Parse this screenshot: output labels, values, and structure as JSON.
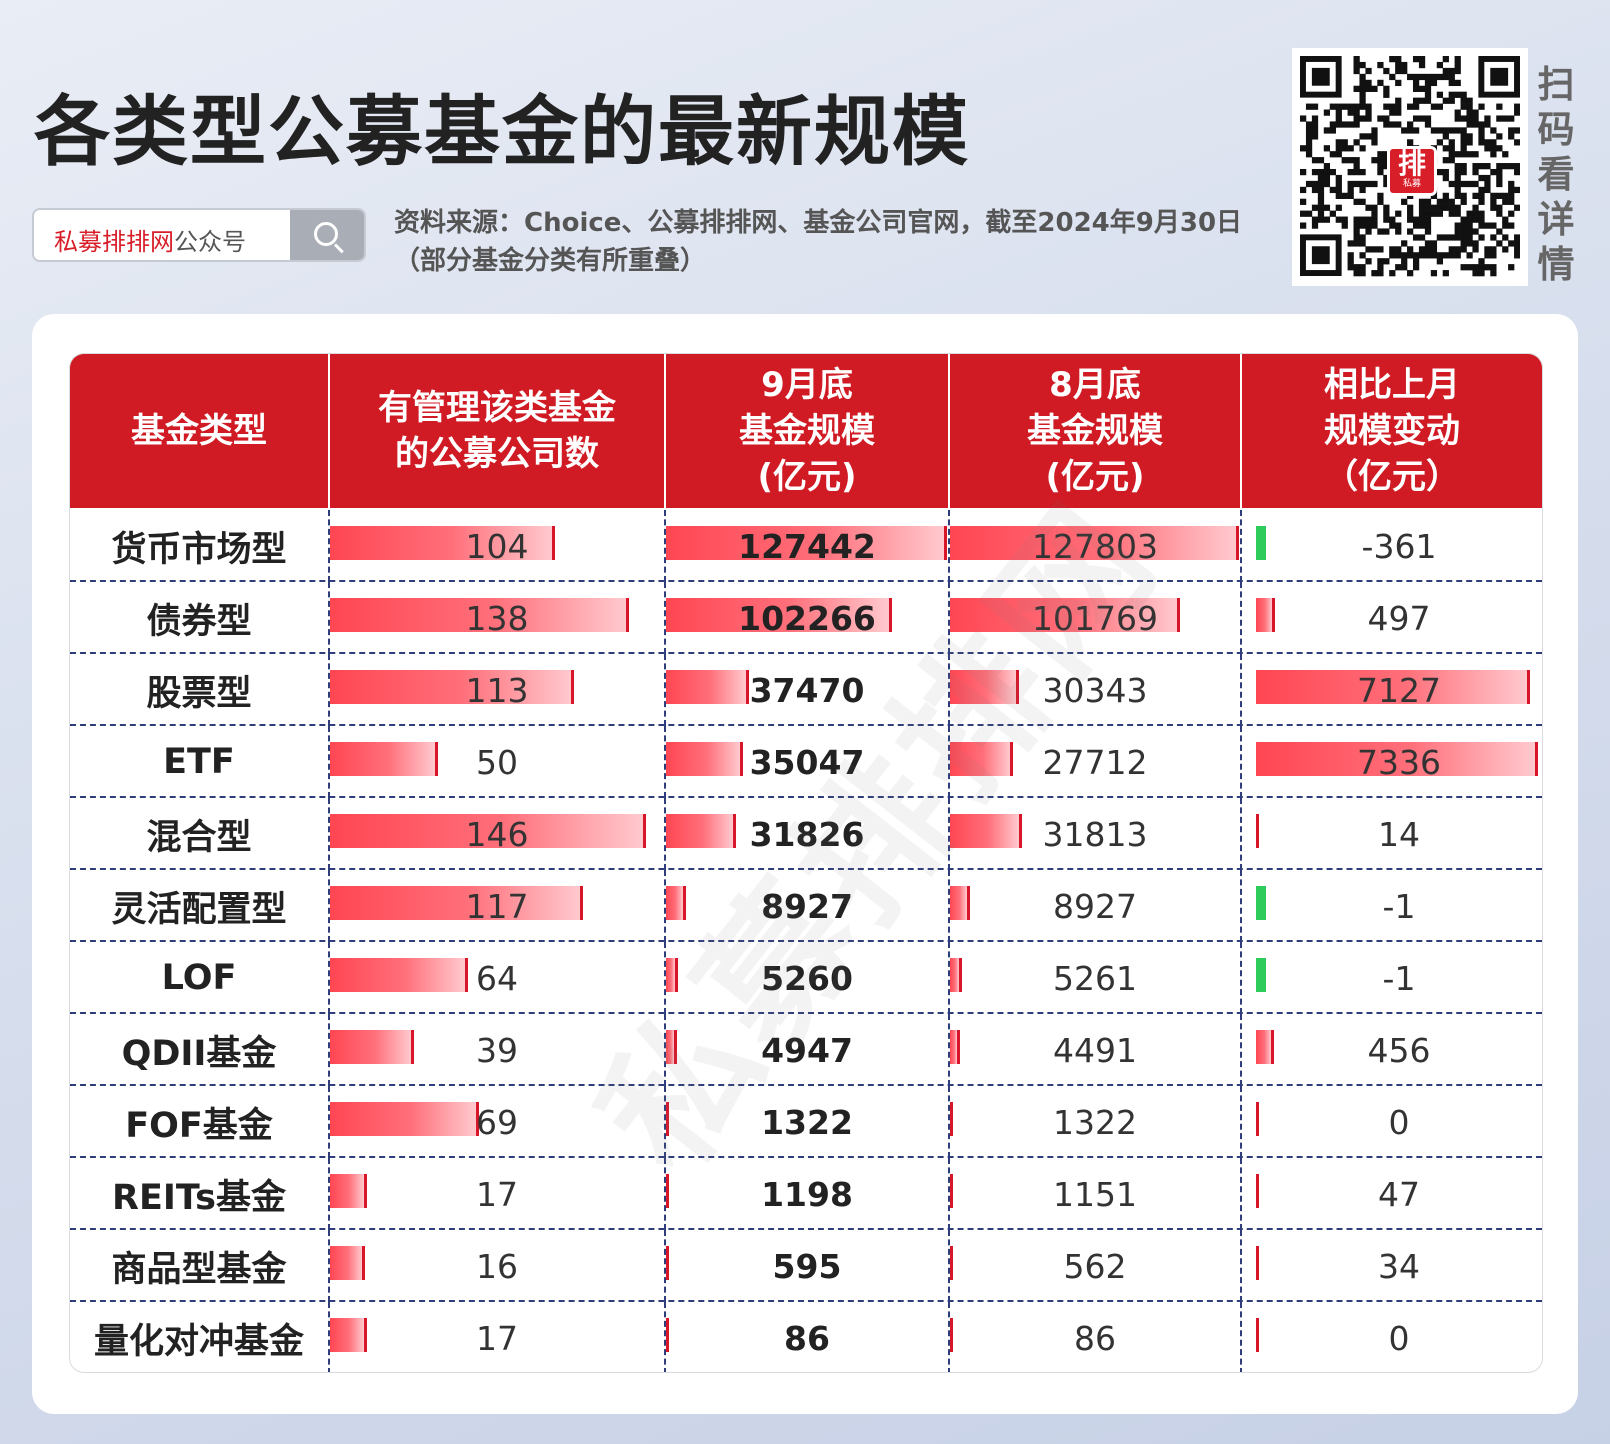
{
  "title": "各类型公募基金的最新规模",
  "search": {
    "brand_red": "私募排排网",
    "brand_rest": "公众号"
  },
  "source_line1": "资料来源：Choice、公募排排网、基金公司官网，截至2024年9月30日",
  "source_line2": "（部分基金分类有所重叠）",
  "qr": {
    "logo_big": "排",
    "logo_small": "私募",
    "scan_label": "扫码看详情"
  },
  "watermark": "私募排排网",
  "colors": {
    "header_red": "#d01b24",
    "bar_red": "#ff4653",
    "bar_green": "#2ecc5b"
  },
  "chart_data": {
    "type": "table",
    "columns": [
      "基金类型",
      "有管理该类基金\n的公募公司数",
      "9月底\n基金规模\n(亿元)",
      "8月底\n基金规模\n(亿元)",
      "相比上月\n规模变动\n（亿元）"
    ],
    "rows": [
      {
        "type": "货币市场型",
        "companies": 104,
        "sep": 127442,
        "aug": 127803,
        "change": -361
      },
      {
        "type": "债券型",
        "companies": 138,
        "sep": 102266,
        "aug": 101769,
        "change": 497
      },
      {
        "type": "股票型",
        "companies": 113,
        "sep": 37470,
        "aug": 30343,
        "change": 7127
      },
      {
        "type": "ETF",
        "companies": 50,
        "sep": 35047,
        "aug": 27712,
        "change": 7336
      },
      {
        "type": "混合型",
        "companies": 146,
        "sep": 31826,
        "aug": 31813,
        "change": 14
      },
      {
        "type": "灵活配置型",
        "companies": 117,
        "sep": 8927,
        "aug": 8927,
        "change": -1
      },
      {
        "type": "LOF",
        "companies": 64,
        "sep": 5260,
        "aug": 5261,
        "change": -1
      },
      {
        "type": "QDII基金",
        "companies": 39,
        "sep": 4947,
        "aug": 4491,
        "change": 456
      },
      {
        "type": "FOF基金",
        "companies": 69,
        "sep": 1322,
        "aug": 1322,
        "change": 0
      },
      {
        "type": "REITs基金",
        "companies": 17,
        "sep": 1198,
        "aug": 1151,
        "change": 47
      },
      {
        "type": "商品型基金",
        "companies": 16,
        "sep": 595,
        "aug": 562,
        "change": 34
      },
      {
        "type": "量化对冲基金",
        "companies": 17,
        "sep": 86,
        "aug": 86,
        "change": 0
      }
    ]
  }
}
